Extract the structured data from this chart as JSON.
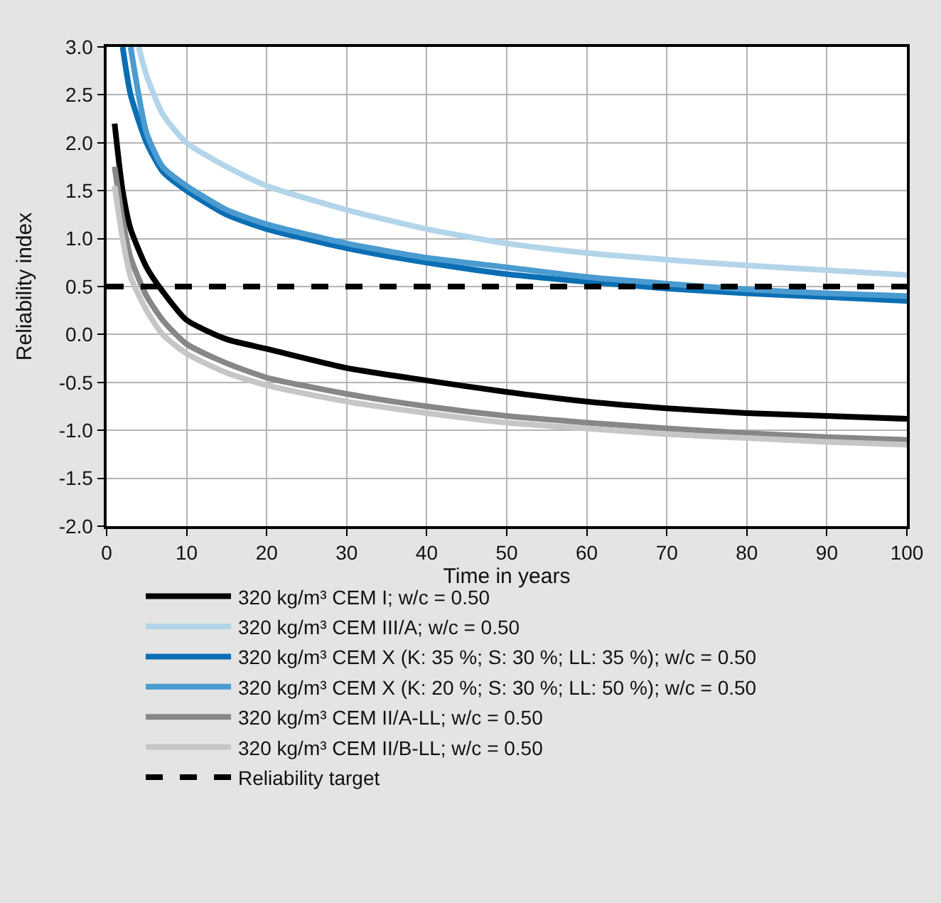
{
  "chart_data": {
    "type": "line",
    "xlabel": "Time in years",
    "ylabel": "Reliability index",
    "xlim": [
      0,
      100
    ],
    "xticks": [
      0,
      10,
      20,
      30,
      40,
      50,
      60,
      70,
      80,
      90,
      100
    ],
    "ylim": [
      -2.0,
      3.0
    ],
    "yticks": [
      {
        "value": -2,
        "label": "-2.0"
      },
      {
        "value": -1.5,
        "label": "-1.5"
      },
      {
        "value": -1,
        "label": "-1.0"
      },
      {
        "value": -0.5,
        "label": "-0.5"
      },
      {
        "value": 0,
        "label": "0.0"
      },
      {
        "value": 0.5,
        "label": "0.5"
      },
      {
        "value": 1,
        "label": "1.0"
      },
      {
        "value": 1.5,
        "label": "1.5"
      },
      {
        "value": 2,
        "label": "2.0"
      },
      {
        "value": 2.5,
        "label": "2.5"
      },
      {
        "value": 3,
        "label": "3.0"
      }
    ],
    "grid": true,
    "legend": "bottom",
    "marker": "none",
    "line_style": "solid",
    "series": [
      {
        "name": "320 kg/m³ CEM I; w/c = 0.50",
        "color": "#000000",
        "x": [
          1,
          2,
          3,
          5,
          7,
          10,
          15,
          20,
          30,
          40,
          50,
          60,
          70,
          80,
          90,
          100
        ],
        "values": [
          2.2,
          1.5,
          1.1,
          0.7,
          0.45,
          0.15,
          -0.05,
          -0.15,
          -0.35,
          -0.48,
          -0.6,
          -0.7,
          -0.77,
          -0.82,
          -0.85,
          -0.88
        ]
      },
      {
        "name": "320 kg/m³ CEM III/A; w/c = 0.50",
        "color": "#b3d5ea",
        "x": [
          4,
          5,
          7,
          10,
          15,
          20,
          30,
          40,
          50,
          60,
          70,
          80,
          90,
          100
        ],
        "values": [
          3.0,
          2.7,
          2.3,
          2.0,
          1.75,
          1.55,
          1.3,
          1.1,
          0.95,
          0.85,
          0.78,
          0.72,
          0.67,
          0.62
        ]
      },
      {
        "name": "320 kg/m³ CEM X (K: 35 %; S: 30 %; LL: 35 %); w/c = 0.50",
        "color": "#0a6eb4",
        "x": [
          2,
          3,
          5,
          7,
          10,
          15,
          20,
          30,
          40,
          50,
          60,
          70,
          80,
          90,
          100
        ],
        "values": [
          3.0,
          2.5,
          2.0,
          1.7,
          1.5,
          1.25,
          1.1,
          0.9,
          0.75,
          0.63,
          0.55,
          0.48,
          0.43,
          0.39,
          0.35
        ]
      },
      {
        "name": "320 kg/m³ CEM X (K: 20 %; S: 30 %; LL: 50 %); w/c = 0.50",
        "color": "#4a9bd0",
        "x": [
          3,
          5,
          7,
          10,
          15,
          20,
          30,
          40,
          50,
          60,
          70,
          80,
          90,
          100
        ],
        "values": [
          3.0,
          2.1,
          1.75,
          1.55,
          1.3,
          1.15,
          0.95,
          0.8,
          0.7,
          0.6,
          0.53,
          0.47,
          0.43,
          0.4
        ]
      },
      {
        "name": "320 kg/m³ CEM II/A-LL; w/c = 0.50",
        "color": "#878787",
        "x": [
          1,
          2,
          3,
          5,
          7,
          10,
          15,
          20,
          30,
          40,
          50,
          60,
          70,
          80,
          90,
          100
        ],
        "values": [
          1.75,
          1.2,
          0.8,
          0.4,
          0.15,
          -0.1,
          -0.3,
          -0.45,
          -0.62,
          -0.75,
          -0.85,
          -0.92,
          -0.98,
          -1.03,
          -1.07,
          -1.1
        ]
      },
      {
        "name": "320 kg/m³ CEM II/B-LL; w/c = 0.50",
        "color": "#c6c6c6",
        "x": [
          1,
          2,
          3,
          5,
          7,
          10,
          15,
          20,
          30,
          40,
          50,
          60,
          70,
          80,
          90,
          100
        ],
        "values": [
          1.55,
          1.0,
          0.6,
          0.25,
          0.0,
          -0.2,
          -0.4,
          -0.53,
          -0.7,
          -0.82,
          -0.92,
          -0.98,
          -1.04,
          -1.08,
          -1.12,
          -1.15
        ]
      }
    ],
    "ref_lines": [
      {
        "axis": "y",
        "value": 0.5,
        "label": "Reliability target",
        "color": "#000000",
        "line_style": "dashed"
      }
    ]
  }
}
